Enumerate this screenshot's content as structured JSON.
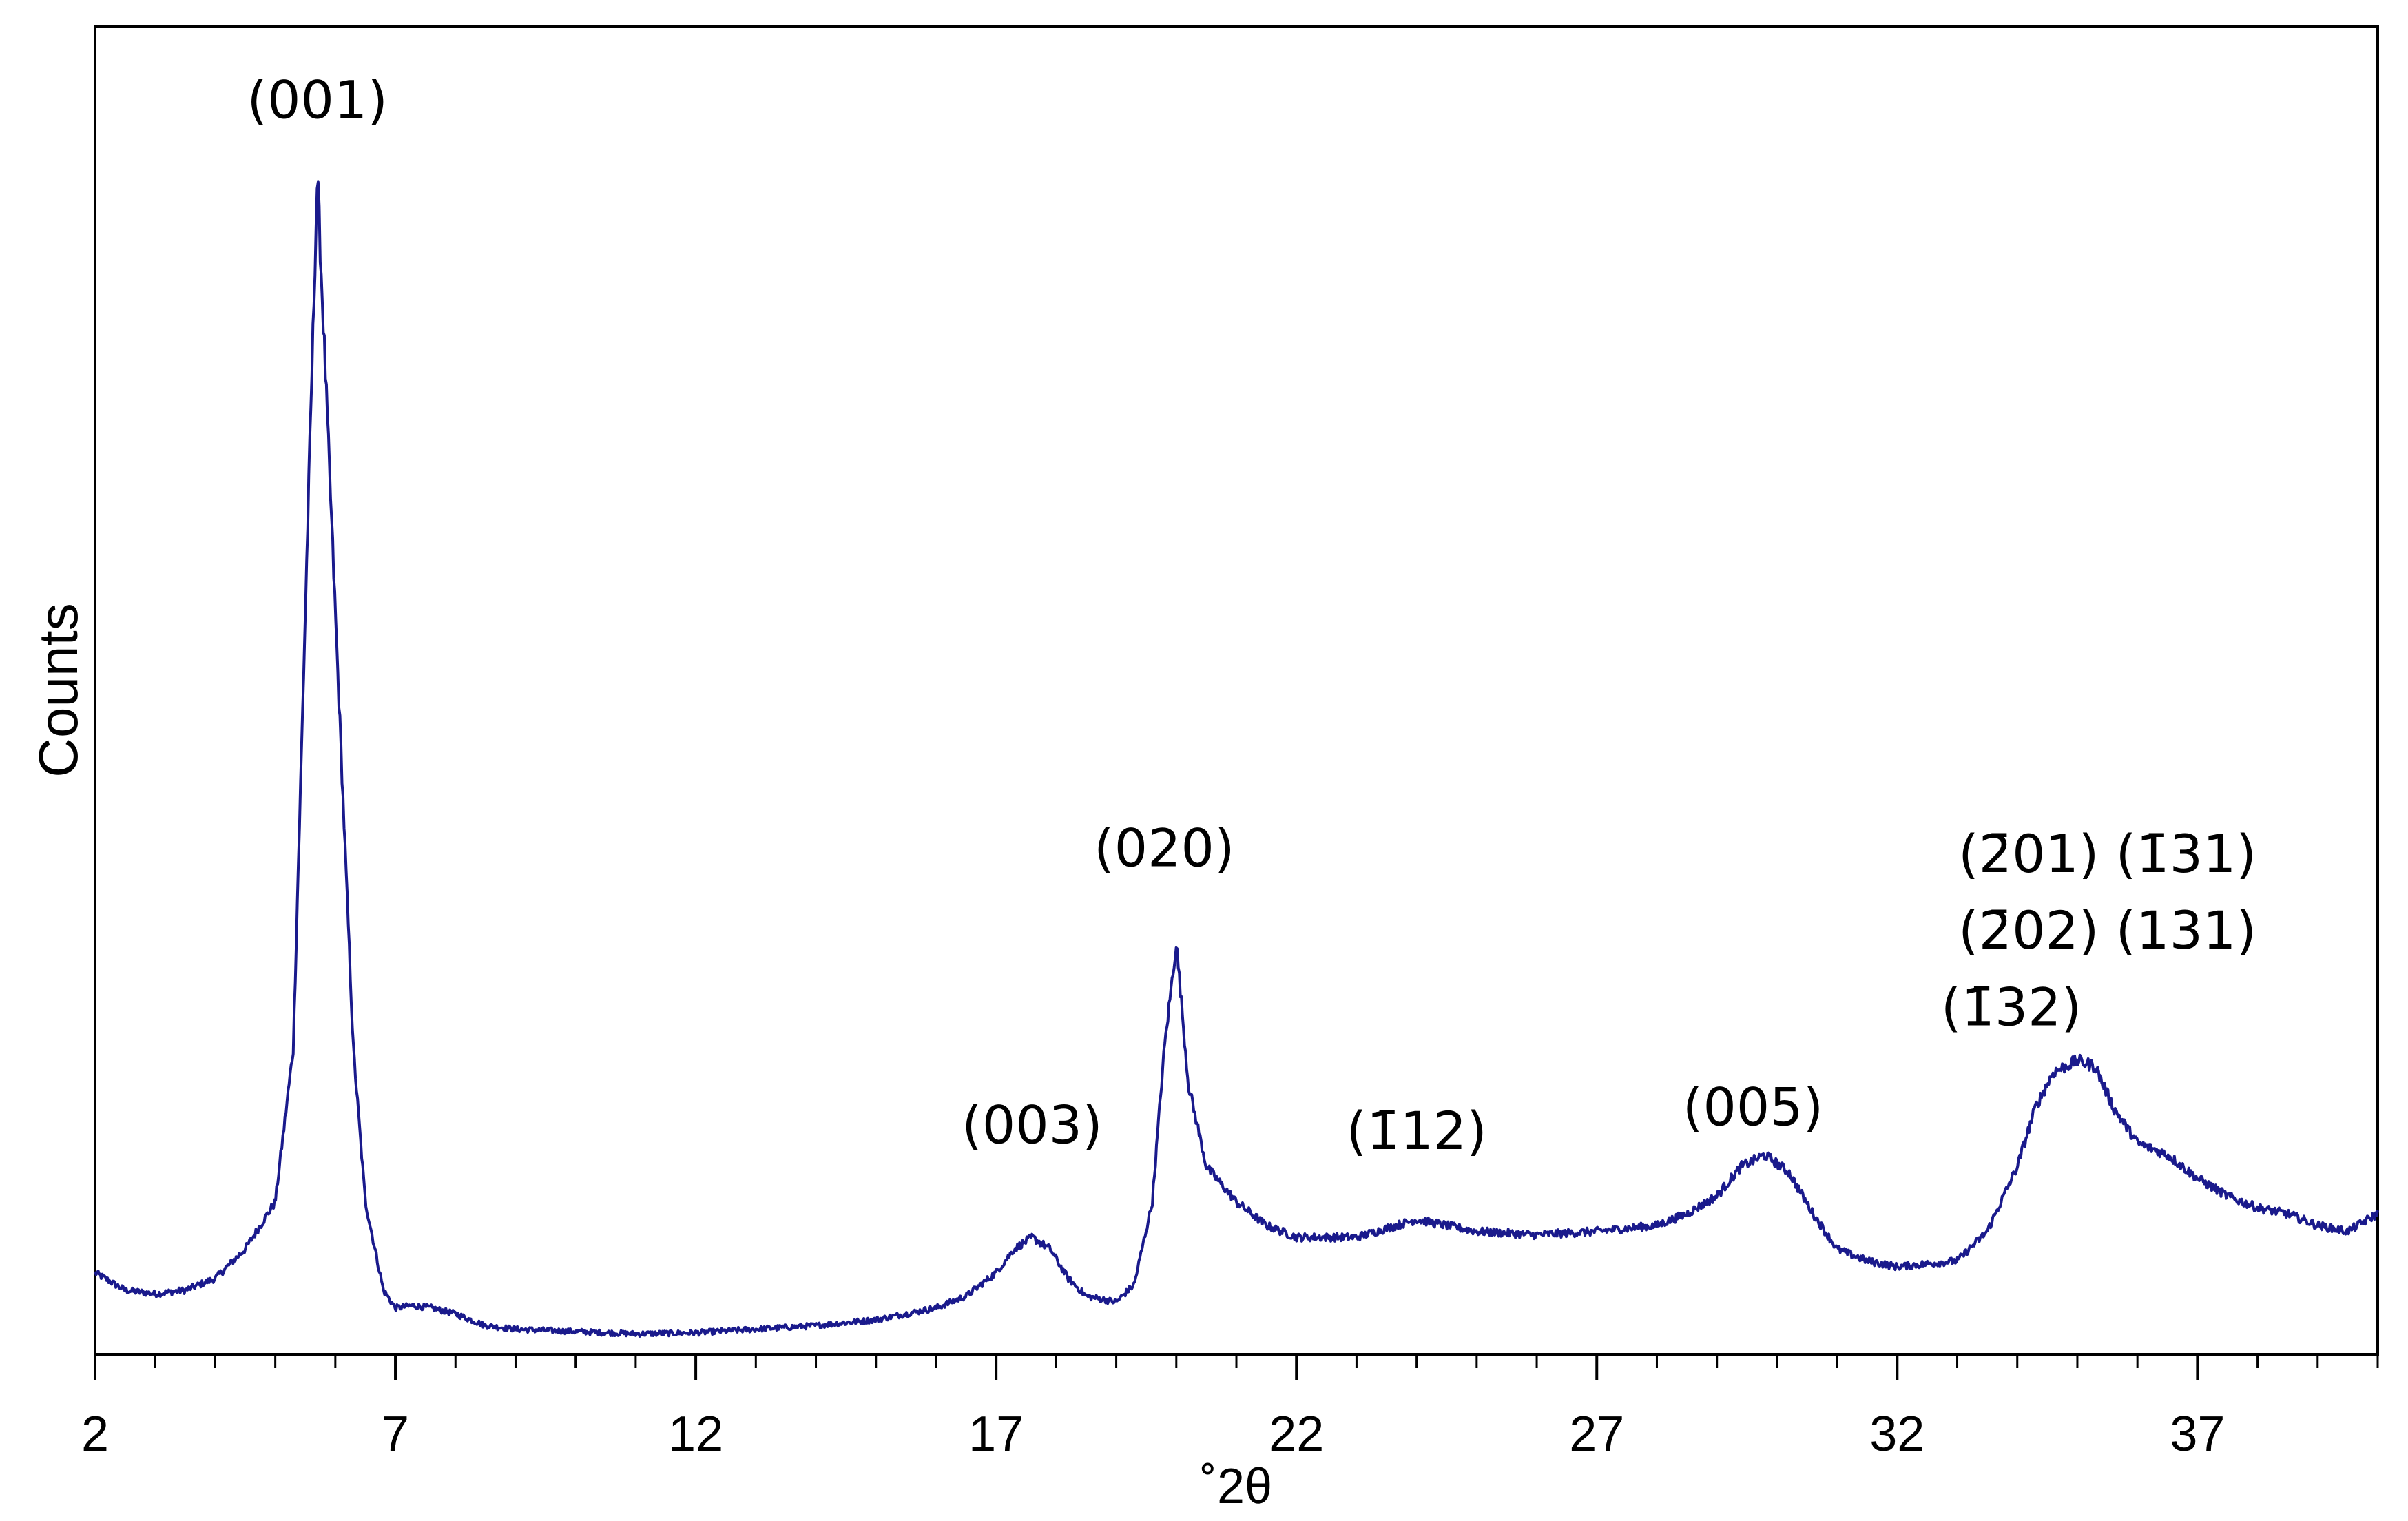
{
  "chart_data": {
    "type": "line",
    "title": "",
    "xlabel": "˚2θ",
    "ylabel": "Counts",
    "xlim": [
      2,
      40
    ],
    "ylim": [
      0,
      100
    ],
    "x_ticks": [
      "2",
      "7",
      "12",
      "17",
      "22",
      "27",
      "32",
      "37"
    ],
    "x_tick_values": [
      2,
      7,
      12,
      17,
      22,
      27,
      32,
      37
    ],
    "minor_tick_step": 1,
    "y_ticks": [],
    "grid": false,
    "line_color": "#1a1a8c",
    "series": [
      {
        "name": "",
        "x": [
          2.0,
          2.5,
          3.0,
          3.5,
          4.0,
          4.5,
          5.0,
          5.3,
          5.5,
          5.7,
          6.0,
          6.3,
          6.5,
          6.8,
          7.0,
          7.3,
          7.6,
          8.0,
          8.5,
          9.0,
          10.0,
          11.0,
          12.0,
          13.0,
          14.0,
          15.0,
          16.0,
          16.5,
          17.0,
          17.3,
          17.6,
          17.9,
          18.2,
          18.5,
          19.0,
          19.3,
          19.6,
          19.8,
          20.0,
          20.2,
          20.5,
          21.0,
          21.5,
          22.0,
          23.0,
          24.0,
          25.0,
          26.0,
          27.0,
          28.0,
          28.5,
          29.0,
          29.4,
          29.8,
          30.2,
          30.6,
          31.0,
          31.5,
          32.0,
          33.0,
          33.5,
          34.0,
          34.3,
          34.6,
          35.0,
          35.3,
          35.6,
          36.0,
          36.5,
          37.0,
          37.5,
          38.0,
          38.5,
          39.0,
          39.5,
          40.0
        ],
        "y": [
          6.0,
          4.5,
          4.2,
          4.5,
          5.5,
          8.0,
          12.0,
          25.0,
          62.0,
          99.0,
          62.0,
          25.0,
          12.0,
          4.5,
          3.0,
          3.2,
          3.0,
          2.5,
          1.5,
          1.2,
          1.0,
          0.8,
          0.9,
          1.2,
          1.5,
          2.0,
          3.0,
          4.0,
          6.0,
          8.0,
          9.0,
          8.0,
          5.5,
          4.0,
          3.5,
          5.0,
          12.0,
          25.0,
          34.0,
          22.0,
          15.0,
          12.0,
          10.0,
          9.0,
          9.0,
          10.5,
          9.5,
          9.2,
          9.5,
          10.0,
          11.0,
          12.5,
          15.0,
          16.0,
          14.5,
          11.0,
          8.0,
          7.0,
          6.5,
          7.0,
          9.5,
          15.0,
          20.0,
          23.0,
          24.0,
          23.5,
          20.0,
          17.0,
          16.0,
          14.0,
          12.5,
          11.5,
          11.0,
          10.0,
          9.5,
          11.0
        ]
      }
    ],
    "annotations": [
      {
        "text": "(001)",
        "x": 5.7,
        "y": 104
      },
      {
        "text": "(003)",
        "x": 17.6,
        "y": 17
      },
      {
        "text": "(020)",
        "x": 19.8,
        "y": 40.5
      },
      {
        "text": "(1̄12)",
        "x": 24.0,
        "y": 16.5
      },
      {
        "text": "(005)",
        "x": 29.6,
        "y": 18.5
      },
      {
        "text": "(2̄01) (1̄31)",
        "x": 35.5,
        "y": 40.0
      },
      {
        "text": "(2̄02) (131)",
        "x": 35.5,
        "y": 33.5
      },
      {
        "text": "(1̄32)",
        "x": 33.9,
        "y": 27.0
      }
    ]
  }
}
